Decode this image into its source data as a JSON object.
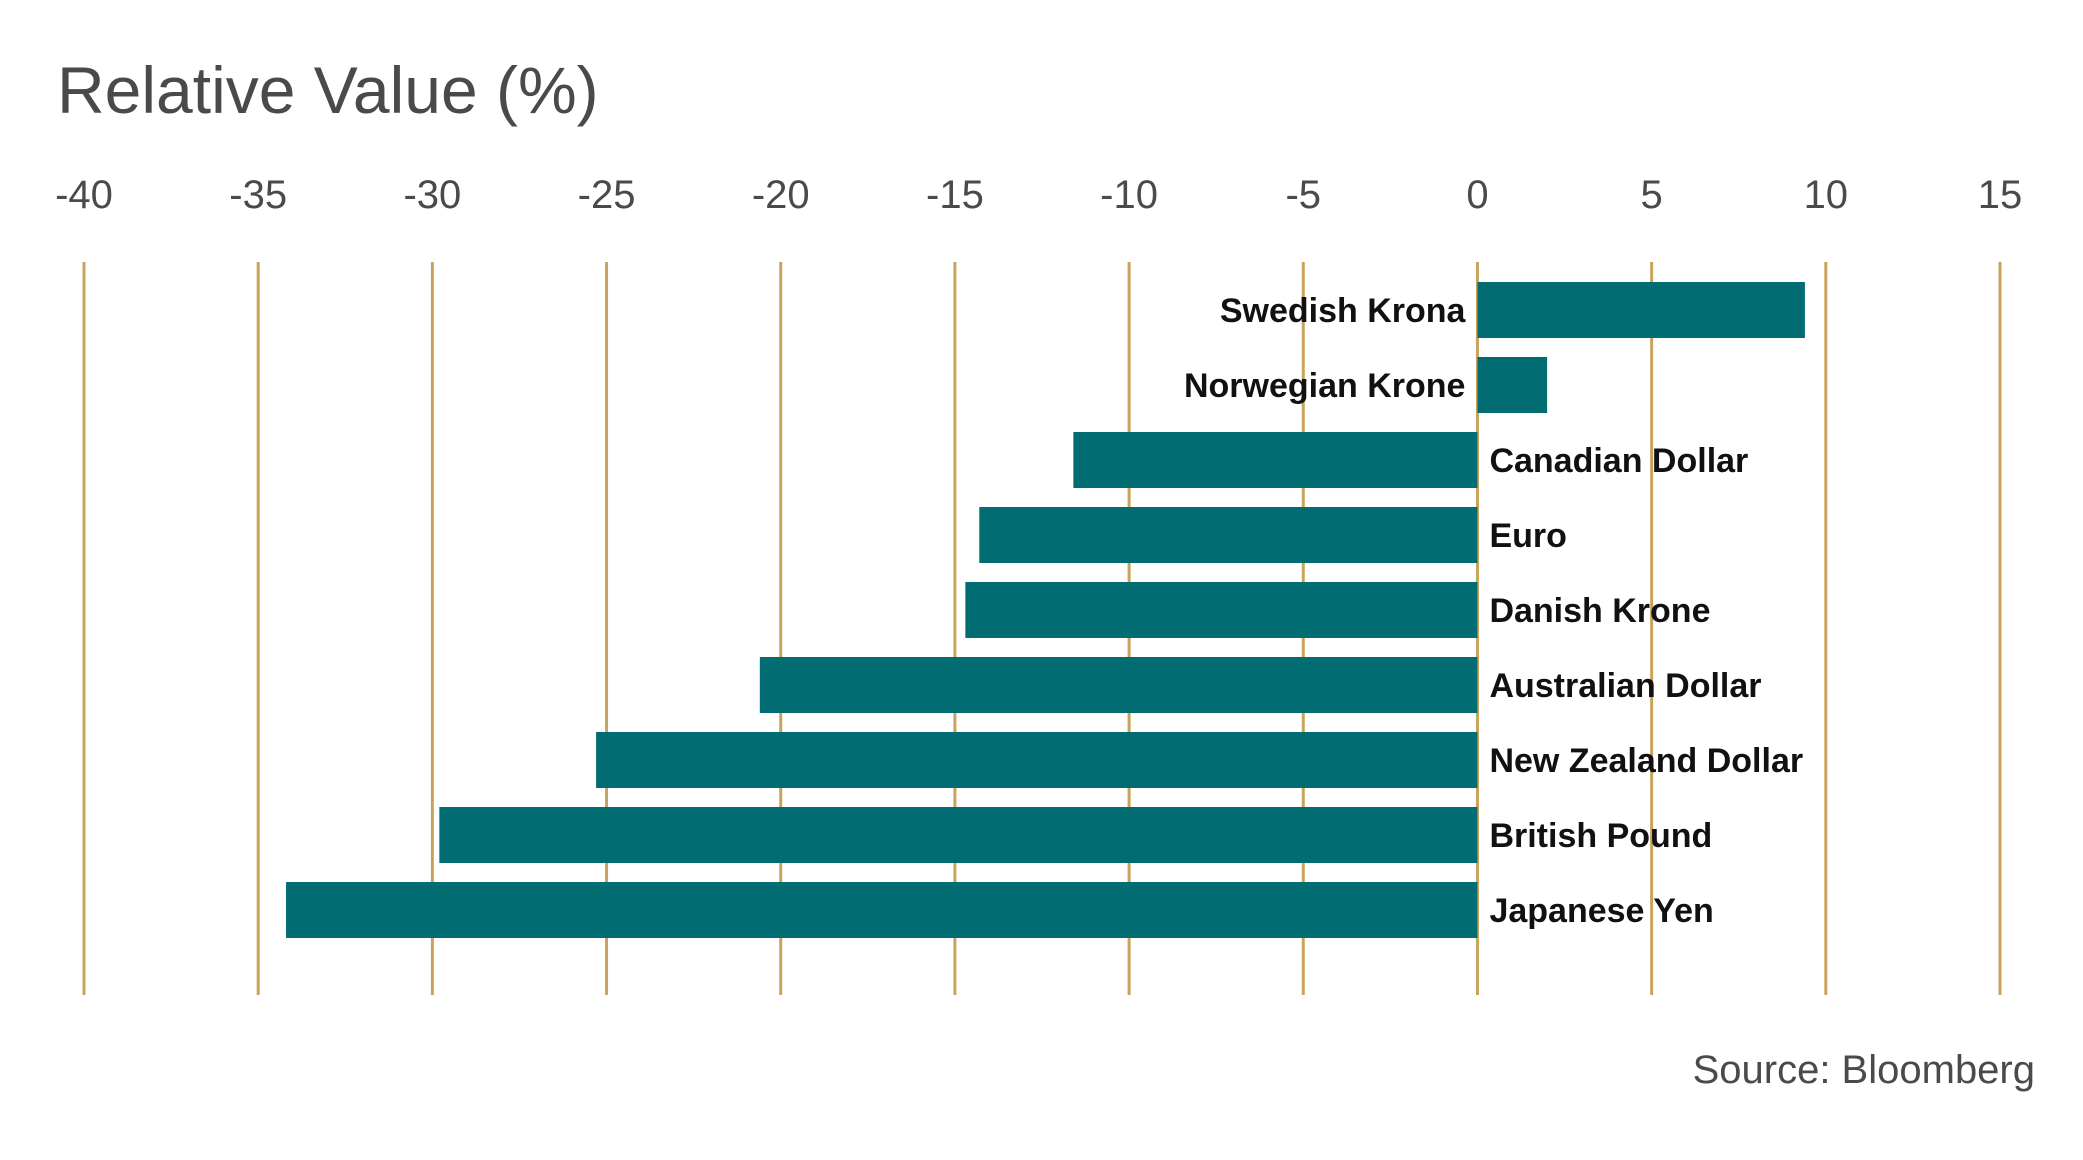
{
  "chart_data": {
    "type": "bar",
    "orientation": "horizontal",
    "title": "Relative Value (%)",
    "source": "Source: Bloomberg",
    "categories": [
      "Swedish Krona",
      "Norwegian Krone",
      "Canadian Dollar",
      "Euro",
      "Danish Krone",
      "Australian Dollar",
      "New Zealand Dollar",
      "British Pound",
      "Japanese Yen"
    ],
    "values": [
      9.4,
      2.0,
      -11.6,
      -14.3,
      -14.7,
      -20.6,
      -25.3,
      -29.8,
      -34.2
    ],
    "xlim": [
      -40,
      15
    ],
    "ticks": [
      -40,
      -35,
      -30,
      -25,
      -20,
      -15,
      -10,
      -5,
      0,
      5,
      10,
      15
    ],
    "tick_labels": [
      "-40",
      "-35",
      "-30",
      "-25",
      "-20",
      "-15",
      "-10",
      "-5",
      "0",
      "5",
      "10",
      "15"
    ],
    "grid": true,
    "colors": {
      "bar": "#016d73",
      "grid": "#c9a35c",
      "text": "#4a4a4a",
      "label": "#111111"
    }
  }
}
